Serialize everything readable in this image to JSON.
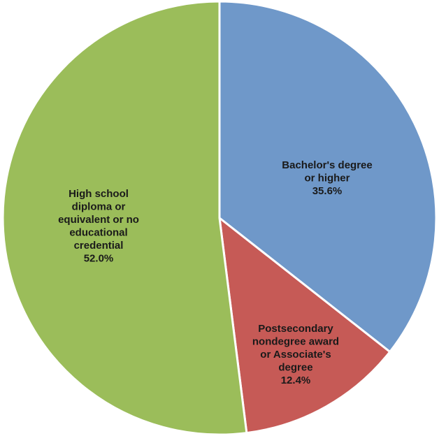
{
  "chart_data": {
    "type": "pie",
    "title": "",
    "start": "top",
    "direction": "clockwise",
    "slices": [
      {
        "category": "Bachelor's degree or higher",
        "value": 35.6,
        "label_lines": [
          "Bachelor's degree",
          "or higher",
          "35.6%"
        ],
        "color": "#6f98c9"
      },
      {
        "category": "Postsecondary nondegree award or Associate's degree",
        "value": 12.4,
        "label_lines": [
          "Postsecondary",
          "nondegree award",
          "or Associate's",
          "degree",
          "12.4%"
        ],
        "color": "#c65a56"
      },
      {
        "category": "High school diploma or equivalent or no educational credential",
        "value": 52.0,
        "label_lines": [
          "High school",
          "diploma or",
          "equivalent or no",
          "educational",
          "credential",
          "52.0%"
        ],
        "color": "#9bbd5a"
      }
    ]
  }
}
